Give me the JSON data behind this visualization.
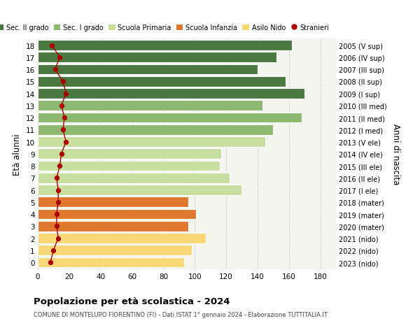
{
  "ages": [
    0,
    1,
    2,
    3,
    4,
    5,
    6,
    7,
    8,
    9,
    10,
    11,
    12,
    13,
    14,
    15,
    16,
    17,
    18
  ],
  "right_labels": [
    "2023 (nido)",
    "2022 (nido)",
    "2021 (nido)",
    "2020 (mater)",
    "2019 (mater)",
    "2018 (mater)",
    "2017 (I ele)",
    "2016 (II ele)",
    "2015 (III ele)",
    "2014 (IV ele)",
    "2013 (V ele)",
    "2012 (I med)",
    "2011 (II med)",
    "2010 (III med)",
    "2009 (I sup)",
    "2008 (II sup)",
    "2007 (III sup)",
    "2006 (IV sup)",
    "2005 (V sup)"
  ],
  "bar_values": [
    93,
    98,
    107,
    96,
    101,
    96,
    130,
    122,
    116,
    117,
    145,
    150,
    168,
    143,
    170,
    158,
    140,
    152,
    162
  ],
  "bar_colors": [
    "#FAD878",
    "#FAD878",
    "#FAD878",
    "#E07830",
    "#E07830",
    "#E07830",
    "#C8DDA0",
    "#C8DDA0",
    "#C8DDA0",
    "#C8DDA0",
    "#C8DDA0",
    "#8DB870",
    "#8DB870",
    "#8DB870",
    "#4A7840",
    "#4A7840",
    "#4A7840",
    "#4A7840",
    "#4A7840"
  ],
  "stranieri_values": [
    8,
    10,
    13,
    12,
    12,
    13,
    13,
    12,
    14,
    15,
    18,
    16,
    17,
    15,
    18,
    16,
    11,
    14,
    9
  ],
  "legend_labels": [
    "Sec. II grado",
    "Sec. I grado",
    "Scuola Primaria",
    "Scuola Infanzia",
    "Asilo Nido",
    "Stranieri"
  ],
  "legend_colors": [
    "#4A7840",
    "#8DB870",
    "#C8DDA0",
    "#E07830",
    "#FAD878",
    "#AA0000"
  ],
  "xlabel_vals": [
    0,
    20,
    40,
    60,
    80,
    100,
    120,
    140,
    160,
    180
  ],
  "xlim": [
    0,
    190
  ],
  "title_main": "Popolazione per età scolastica - 2024",
  "title_sub": "COMUNE DI MONTELUPO FIORENTINO (FI) - Dati ISTAT 1° gennaio 2024 - Elaborazione TUTTITALIA.IT",
  "ylabel_left": "Età alunni",
  "ylabel_right": "Anni di nascita",
  "bg_color": "#FFFFFF",
  "plot_bg": "#F5F5F0",
  "grid_color": "#CCCCCC",
  "bar_height": 0.85
}
